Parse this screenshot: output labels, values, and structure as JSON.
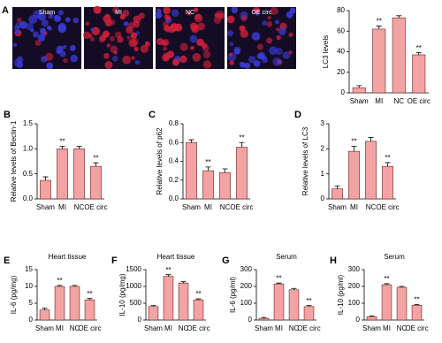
{
  "figure": {
    "panel_letter": "A",
    "image_labels": [
      "Sham",
      "MI",
      "NC",
      "OE circ"
    ]
  },
  "chart_data": [
    {
      "type": "bar",
      "panel": "A",
      "ylabel": "LC3 levels",
      "categories": [
        "Sham",
        "MI",
        "NC",
        "OE circ"
      ],
      "values": [
        5,
        62,
        73,
        37
      ],
      "errors": [
        2,
        3,
        2,
        2
      ],
      "significance": [
        null,
        "**",
        null,
        "**"
      ],
      "ylim": [
        0,
        80
      ],
      "yticks": [
        0,
        20,
        40,
        60,
        80
      ],
      "color": "#f4a3a3"
    },
    {
      "type": "bar",
      "panel": "B",
      "ylabel": "Relative levels of Beclin-1",
      "categories": [
        "Sham",
        "MI",
        "NC",
        "OE circ"
      ],
      "values": [
        0.37,
        1.0,
        1.0,
        0.65
      ],
      "errors": [
        0.07,
        0.05,
        0.05,
        0.07
      ],
      "significance": [
        null,
        "**",
        null,
        "**"
      ],
      "ylim": [
        0,
        1.5
      ],
      "yticks": [
        {
          "value": 0,
          "label": "0.0"
        },
        0.5,
        {
          "value": 1,
          "label": "1.0"
        },
        1.5
      ],
      "color": "#f4a3a3"
    },
    {
      "type": "bar",
      "panel": "C",
      "ylabel": "Relative levels of p62",
      "categories": [
        "Sham",
        "MI",
        "NC",
        "OE circ"
      ],
      "values": [
        0.6,
        0.3,
        0.28,
        0.55
      ],
      "errors": [
        0.03,
        0.04,
        0.04,
        0.05
      ],
      "significance": [
        null,
        "**",
        null,
        "**"
      ],
      "ylim": [
        0,
        0.8
      ],
      "yticks": [
        {
          "value": 0,
          "label": "0.0"
        },
        0.2,
        0.4,
        0.6,
        0.8
      ],
      "color": "#f4a3a3"
    },
    {
      "type": "bar",
      "panel": "D",
      "ylabel": "Relative levels of LC3",
      "categories": [
        "Sham",
        "MI",
        "NC",
        "OE circ"
      ],
      "values": [
        0.4,
        1.9,
        2.3,
        1.3
      ],
      "errors": [
        0.12,
        0.2,
        0.15,
        0.15
      ],
      "significance": [
        null,
        "**",
        null,
        "**"
      ],
      "ylim": [
        0,
        3
      ],
      "yticks": [
        0,
        1,
        2,
        3
      ],
      "color": "#f4a3a3"
    },
    {
      "type": "bar",
      "panel": "E",
      "title": "Heart tissue",
      "ylabel": "IL-6 (pg/mg)",
      "categories": [
        "Sham",
        "MI",
        "NC",
        "OE circ"
      ],
      "values": [
        3,
        10,
        10,
        6
      ],
      "errors": [
        0.5,
        0.3,
        0.3,
        0.4
      ],
      "significance": [
        null,
        "**",
        null,
        "**"
      ],
      "ylim": [
        0,
        15
      ],
      "yticks": [
        0,
        5,
        10,
        15
      ],
      "color": "#f4a3a3"
    },
    {
      "type": "bar",
      "panel": "F",
      "title": "Heart tissue",
      "ylabel": "IL-10 (pg/mg)",
      "categories": [
        "Sham",
        "MI",
        "NC",
        "OE circ"
      ],
      "values": [
        400,
        1300,
        1100,
        600
      ],
      "errors": [
        30,
        50,
        40,
        30
      ],
      "significance": [
        null,
        "**",
        null,
        "**"
      ],
      "ylim": [
        0,
        1500
      ],
      "yticks": [
        0,
        500,
        1000,
        1500
      ],
      "color": "#f4a3a3"
    },
    {
      "type": "bar",
      "panel": "G",
      "title": "Serum",
      "ylabel": "IL-6 (pg/ml)",
      "categories": [
        "Sham",
        "MI",
        "NC",
        "OE circ"
      ],
      "values": [
        10,
        215,
        180,
        80
      ],
      "errors": [
        5,
        5,
        8,
        6
      ],
      "significance": [
        null,
        "**",
        null,
        "**"
      ],
      "ylim": [
        0,
        300
      ],
      "yticks": [
        0,
        100,
        200,
        300
      ],
      "color": "#f4a3a3"
    },
    {
      "type": "bar",
      "panel": "H",
      "title": "Serum",
      "ylabel": "IL-10 (pg/ml)",
      "categories": [
        "Sham",
        "MI",
        "NC",
        "OE circ"
      ],
      "values": [
        20,
        210,
        195,
        88
      ],
      "errors": [
        5,
        6,
        5,
        4
      ],
      "significance": [
        null,
        "**",
        null,
        "**"
      ],
      "ylim": [
        0,
        300
      ],
      "yticks": [
        0,
        100,
        200,
        300
      ],
      "color": "#f4a3a3"
    }
  ]
}
